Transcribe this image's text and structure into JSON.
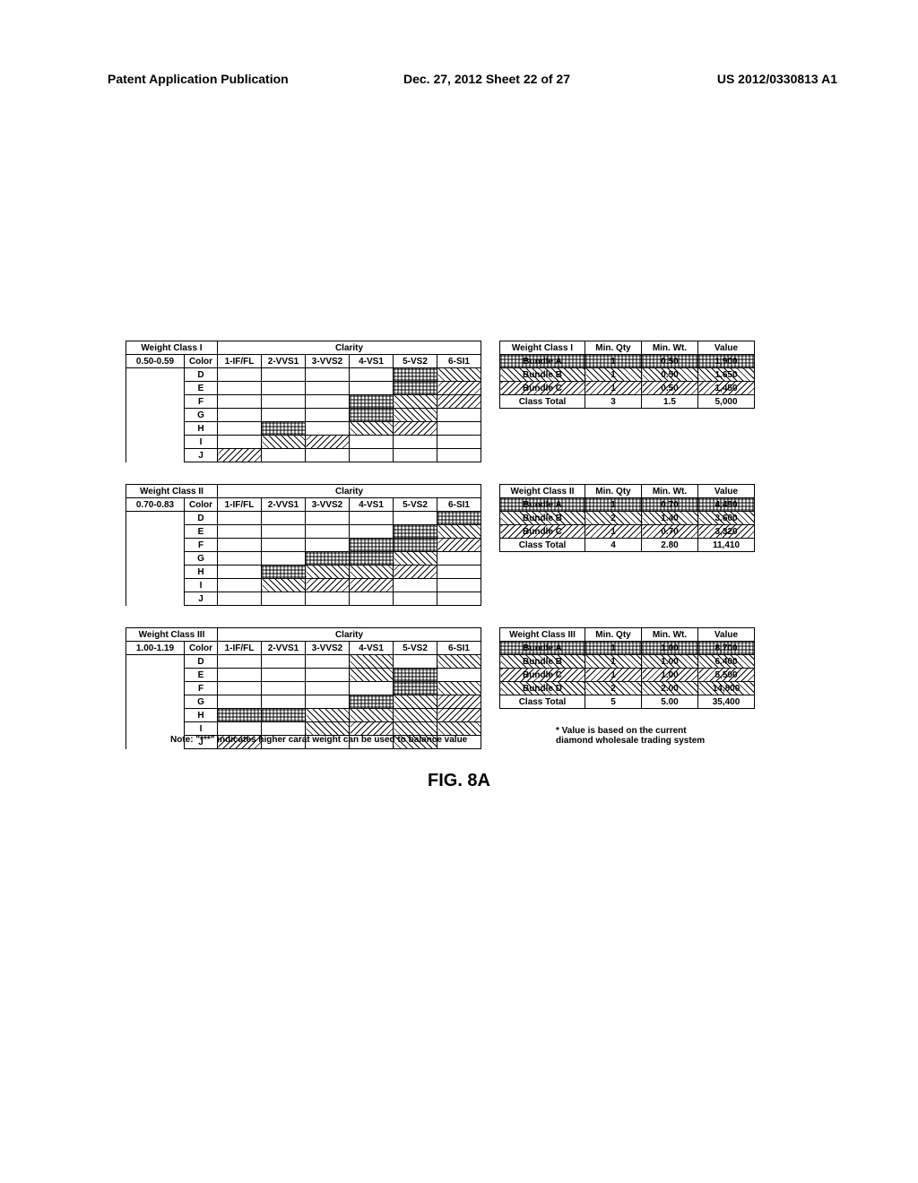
{
  "header": {
    "left": "Patent Application Publication",
    "mid": "Dec. 27, 2012  Sheet 22 of 27",
    "right": "US 2012/0330813 A1"
  },
  "clarity_cols": [
    "1-IF/FL",
    "2-VVS1",
    "3-VVS2",
    "4-VS1",
    "5-VS2",
    "6-SI1"
  ],
  "color_rows": [
    "D",
    "E",
    "F",
    "G",
    "H",
    "I",
    "J"
  ],
  "blocks": [
    {
      "weight_class_label": "Weight Class I",
      "range": "0.50-0.59",
      "clarity_label": "Clarity",
      "color_label": "Color",
      "cells": [
        [
          "",
          "",
          "",
          "",
          "A",
          "B"
        ],
        [
          "",
          "",
          "",
          "",
          "A",
          "C"
        ],
        [
          "",
          "",
          "",
          "A",
          "B",
          "C"
        ],
        [
          "",
          "",
          "",
          "A",
          "B",
          ""
        ],
        [
          "",
          "A",
          "",
          "B",
          "C",
          ""
        ],
        [
          "",
          "B",
          "C",
          "",
          "",
          ""
        ],
        [
          "C",
          "",
          "",
          "",
          "",
          ""
        ]
      ],
      "summary": {
        "title": "Weight Class I",
        "cols": [
          "Min. Qty",
          "Min. Wt.",
          "Value"
        ],
        "rows": [
          {
            "name": "Bundle A",
            "fill": "A",
            "qty": "1",
            "wt": "0.50",
            "val": "1,900"
          },
          {
            "name": "Bundle B",
            "fill": "B",
            "qty": "1",
            "wt": "0.50",
            "val": "1,650"
          },
          {
            "name": "Bundle C",
            "fill": "C",
            "qty": "1",
            "wt": "0.50",
            "val": "1,450"
          }
        ],
        "total": {
          "name": "Class Total",
          "qty": "3",
          "wt": "1.5",
          "val": "5,000"
        }
      }
    },
    {
      "weight_class_label": "Weight Class II",
      "range": "0.70-0.83",
      "clarity_label": "Clarity",
      "color_label": "Color",
      "cells": [
        [
          "",
          "",
          "",
          "",
          "",
          "A"
        ],
        [
          "",
          "",
          "",
          "",
          "A",
          "B"
        ],
        [
          "",
          "",
          "",
          "A",
          "A",
          "C"
        ],
        [
          "",
          "",
          "A",
          "A",
          "B",
          ""
        ],
        [
          "",
          "A",
          "B",
          "B",
          "C",
          ""
        ],
        [
          "",
          "B",
          "C",
          "C",
          "",
          ""
        ],
        [
          "",
          "",
          "",
          "",
          "",
          ""
        ]
      ],
      "summary": {
        "title": "Weight Class II",
        "cols": [
          "Min. Qty",
          "Min. Wt.",
          "Value"
        ],
        "rows": [
          {
            "name": "Bundle A",
            "fill": "A",
            "qty": "1",
            "wt": "0.70",
            "val": "4,490"
          },
          {
            "name": "Bundle B",
            "fill": "B",
            "qty": "2",
            "wt": "1.40",
            "val": "3,600"
          },
          {
            "name": "Bundle C",
            "fill": "C",
            "qty": "1",
            "wt": "0.70",
            "val": "3,320"
          }
        ],
        "total": {
          "name": "Class Total",
          "qty": "4",
          "wt": "2.80",
          "val": "11,410"
        }
      }
    },
    {
      "weight_class_label": "Weight Class III",
      "range": "1.00-1.19",
      "clarity_label": "Clarity",
      "color_label": "Color",
      "cells": [
        [
          "",
          "",
          "",
          "D",
          "",
          "D"
        ],
        [
          "",
          "",
          "",
          "D",
          "A",
          ""
        ],
        [
          "",
          "",
          "",
          "",
          "A",
          "B"
        ],
        [
          "",
          "",
          "",
          "A",
          "D",
          "C"
        ],
        [
          "A",
          "A",
          "D",
          "D",
          "B",
          "C"
        ],
        [
          "",
          "",
          "B",
          "C",
          "D",
          "D"
        ],
        [
          "C",
          "",
          "",
          "",
          "D",
          ""
        ]
      ],
      "summary": {
        "title": "Weight Class III",
        "cols": [
          "Min. Qty",
          "Min. Wt.",
          "Value"
        ],
        "rows": [
          {
            "name": "Bundle A",
            "fill": "A",
            "qty": "1",
            "wt": "1.00",
            "val": "8,700"
          },
          {
            "name": "Bundle B",
            "fill": "B",
            "qty": "1",
            "wt": "1.00",
            "val": "6,400"
          },
          {
            "name": "Bundle C",
            "fill": "C",
            "qty": "1",
            "wt": "1.00",
            "val": "5,500"
          },
          {
            "name": "Bundle D",
            "fill": "D",
            "qty": "2",
            "wt": "2.00",
            "val": "14,800"
          }
        ],
        "total": {
          "name": "Class Total",
          "qty": "5",
          "wt": "5.00",
          "val": "35,400"
        }
      }
    }
  ],
  "note_left": "Note: \"***\" indicates higher carat weight can be used to balance value",
  "note_right": "* Value is based on the current\ndiamond wholesale trading system",
  "figure_label": "FIG. 8A"
}
